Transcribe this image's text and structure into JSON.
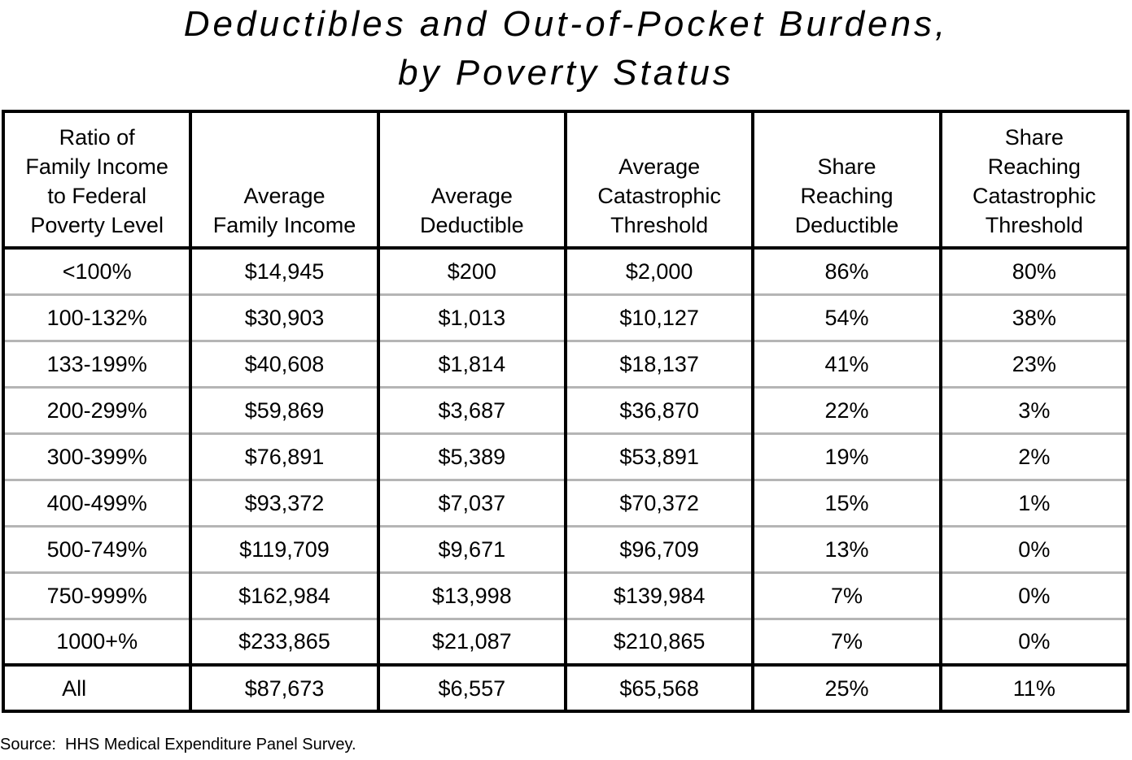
{
  "chart_data": {
    "type": "table",
    "title_lines": [
      "Deductibles and Out-of-Pocket Burdens,",
      "by Poverty Status"
    ],
    "columns": [
      {
        "lines": [
          "Ratio of",
          "Family Income",
          "to Federal",
          "Poverty Level"
        ]
      },
      {
        "lines": [
          "Average",
          "Family Income"
        ]
      },
      {
        "lines": [
          "Average",
          "Deductible"
        ]
      },
      {
        "lines": [
          "Average",
          "Catastrophic",
          "Threshold"
        ]
      },
      {
        "lines": [
          "Share",
          "Reaching",
          "Deductible"
        ]
      },
      {
        "lines": [
          "Share",
          "Reaching",
          "Catastrophic",
          "Threshold"
        ]
      }
    ],
    "rows": [
      [
        "<100%",
        "$14,945",
        "$200",
        "$2,000",
        "86%",
        "80%"
      ],
      [
        "100-132%",
        "$30,903",
        "$1,013",
        "$10,127",
        "54%",
        "38%"
      ],
      [
        "133-199%",
        "$40,608",
        "$1,814",
        "$18,137",
        "41%",
        "23%"
      ],
      [
        "200-299%",
        "$59,869",
        "$3,687",
        "$36,870",
        "22%",
        "3%"
      ],
      [
        "300-399%",
        "$76,891",
        "$5,389",
        "$53,891",
        "19%",
        "2%"
      ],
      [
        "400-499%",
        "$93,372",
        "$7,037",
        "$70,372",
        "15%",
        "1%"
      ],
      [
        "500-749%",
        "$119,709",
        "$9,671",
        "$96,709",
        "13%",
        "0%"
      ],
      [
        "750-999%",
        "$162,984",
        "$13,998",
        "$139,984",
        "7%",
        "0%"
      ],
      [
        "1000+%",
        "$233,865",
        "$21,087",
        "$210,865",
        "7%",
        "0%"
      ]
    ],
    "total_row": [
      "All",
      "$87,673",
      "$6,557",
      "$65,568",
      "25%",
      "11%"
    ],
    "source": "Source:  HHS Medical Expenditure Panel Survey."
  }
}
